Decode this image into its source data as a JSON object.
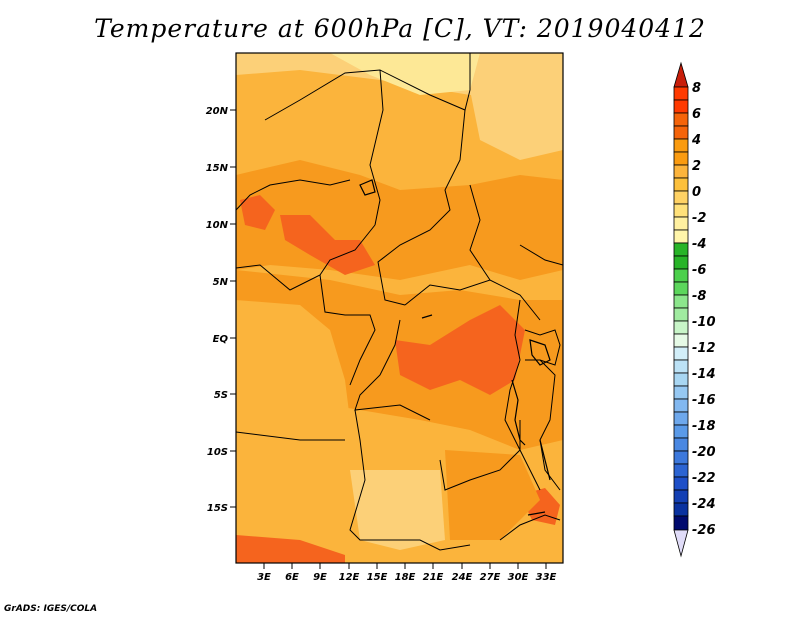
{
  "title": "Temperature at 600hPa [C], VT: 2019040412",
  "credit": "GrADS: IGES/COLA",
  "lat_labels": [
    "20N",
    "15N",
    "10N",
    "5N",
    "EQ",
    "5S",
    "10S",
    "15S"
  ],
  "lon_labels": [
    "3E",
    "6E",
    "9E",
    "12E",
    "15E",
    "18E",
    "21E",
    "24E",
    "27E",
    "30E",
    "33E"
  ],
  "colorbar": {
    "levels": [
      "8",
      "6",
      "4",
      "2",
      "0",
      "-2",
      "-4",
      "-6",
      "-8",
      "-10",
      "-12",
      "-14",
      "-16",
      "-18",
      "-20",
      "-22",
      "-24",
      "-26"
    ],
    "colors": [
      "#c81e0a",
      "#ff3a00",
      "#f5640a",
      "#fa9b10",
      "#fcc03c",
      "#ffe17a",
      "#fff5aa",
      "#28b428",
      "#4cd04c",
      "#8ce68c",
      "#b8f0b8",
      "#e6fae6",
      "#d2eef8",
      "#a8d6f2",
      "#82b8f0",
      "#5a9ae8",
      "#3c78dc",
      "#1e4fc8",
      "#0a32a0",
      "#000a6e",
      "#e0dcf8"
    ]
  },
  "palette": {
    "light": "#fcd078",
    "mid": "#fbb43c",
    "orange": "#f79a1e",
    "warm": "#f58220",
    "hot": "#f5641e",
    "pale": "#fde896"
  }
}
